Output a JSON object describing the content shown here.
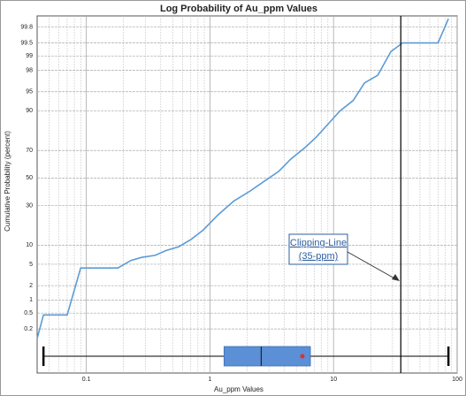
{
  "chart_data": {
    "type": "probability-line",
    "title": "Log Probability of Au_ppm Values",
    "x_label": "Au_ppm Values",
    "y_label": "Cumulative Probability (percent)",
    "x_log": true,
    "y_probability_scale": true,
    "grid": true,
    "xlim": [
      0.04,
      100
    ],
    "ylim": [
      0.01,
      99.9
    ],
    "xticks": [
      0.1,
      1,
      10,
      100
    ],
    "yticks": [
      0.2,
      0.5,
      1,
      2,
      5,
      10,
      30,
      50,
      70,
      90,
      95,
      98,
      99,
      99.5,
      99.8
    ],
    "series": [
      {
        "color": "#5b9bd5",
        "x": [
          0.04,
          0.045,
          0.07,
          0.09,
          0.18,
          0.23,
          0.28,
          0.36,
          0.44,
          0.56,
          0.7,
          0.88,
          1.16,
          1.56,
          2.1,
          2.8,
          3.6,
          4.5,
          5.9,
          7.2,
          9.1,
          11.3,
          14.4,
          17.8,
          22.8,
          29.1,
          36.2,
          70,
          85
        ],
        "values": [
          0.11,
          0.45,
          0.45,
          4.3,
          4.3,
          5.8,
          6.5,
          7,
          8.3,
          9.5,
          12,
          16,
          24,
          33,
          40,
          48,
          55,
          64,
          72,
          78,
          85,
          90,
          93,
          96.5,
          97.5,
          99.2,
          99.5,
          99.5,
          99.88
        ]
      }
    ],
    "boxplot": {
      "color": "#5b8fd6",
      "mean_color": "#e03030",
      "whisker_low": 0.045,
      "q1": 1.3,
      "median": 2.6,
      "q3": 6.5,
      "whisker_high": 85,
      "mean": 5.6
    },
    "clip_line_x": 35,
    "annotation": {
      "line1": "Clipping-Line",
      "line2": "(35-ppm)"
    }
  }
}
